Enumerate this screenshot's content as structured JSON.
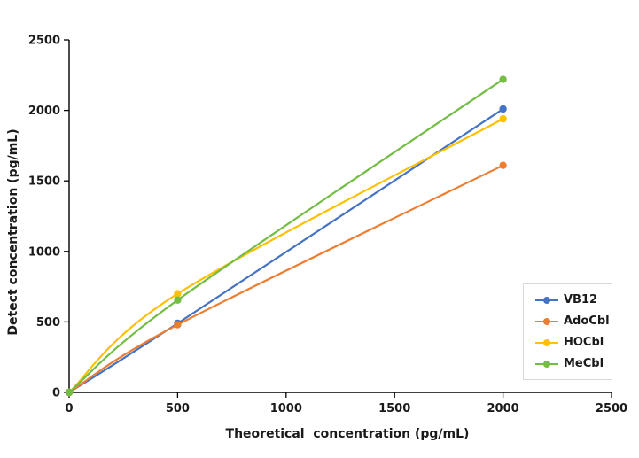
{
  "chart_data": {
    "type": "line",
    "line_style": "smooth-with-markers",
    "x": [
      0,
      500,
      2000
    ],
    "series": [
      {
        "name": "VB12",
        "color": "#4472C4",
        "values": [
          0,
          490,
          2010
        ]
      },
      {
        "name": "AdoCbl",
        "color": "#ED7D31",
        "values": [
          0,
          480,
          1610
        ]
      },
      {
        "name": "HOCbl",
        "color": "#FFC000",
        "values": [
          0,
          700,
          1940
        ]
      },
      {
        "name": "MeCbl",
        "color": "#73BD44",
        "values": [
          0,
          655,
          2220
        ]
      }
    ],
    "title": "",
    "xlabel": "Theoretical  concentration (pg/mL)",
    "ylabel": "Detect concentration (pg/mL)",
    "xlim": [
      0,
      2500
    ],
    "ylim": [
      0,
      2500
    ],
    "x_ticks": [
      0,
      500,
      1000,
      1500,
      2000,
      2500
    ],
    "y_ticks": [
      0,
      500,
      1000,
      1500,
      2000,
      2500
    ],
    "grid": false,
    "axis_color": "#000000",
    "legend_position": "right-middle",
    "legend_border_color": "#d9d9d9"
  }
}
